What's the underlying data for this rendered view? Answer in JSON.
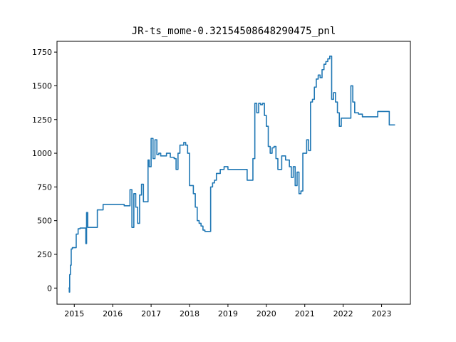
{
  "chart_data": {
    "type": "line",
    "title": "JR-ts_mome-0.32154508648290475_pnl",
    "xlabel": "",
    "ylabel": "",
    "xlim": [
      2014.55,
      2023.75
    ],
    "ylim": [
      -120,
      1830
    ],
    "grid": false,
    "x_ticks": [
      2015,
      2016,
      2017,
      2018,
      2019,
      2020,
      2021,
      2022,
      2023
    ],
    "x_tick_labels": [
      "2015",
      "2016",
      "2017",
      "2018",
      "2019",
      "2020",
      "2021",
      "2022",
      "2023"
    ],
    "y_ticks": [
      0,
      250,
      500,
      750,
      1000,
      1250,
      1500,
      1750
    ],
    "y_tick_labels": [
      "0",
      "250",
      "500",
      "750",
      "1000",
      "1250",
      "1500",
      "1750"
    ],
    "series": [
      {
        "color": "#1f77b4",
        "x": [
          2014.85,
          2014.87,
          2014.88,
          2014.9,
          2014.92,
          2014.95,
          2015.0,
          2015.05,
          2015.1,
          2015.15,
          2015.2,
          2015.25,
          2015.3,
          2015.32,
          2015.35,
          2015.37,
          2015.4,
          2015.42,
          2015.45,
          2015.5,
          2015.6,
          2015.65,
          2015.7,
          2015.75,
          2015.8,
          2016.0,
          2016.3,
          2016.4,
          2016.45,
          2016.5,
          2016.55,
          2016.6,
          2016.65,
          2016.7,
          2016.75,
          2016.8,
          2016.85,
          2016.9,
          2016.92,
          2016.95,
          2017.0,
          2017.05,
          2017.1,
          2017.15,
          2017.2,
          2017.25,
          2017.3,
          2017.4,
          2017.5,
          2017.6,
          2017.65,
          2017.7,
          2017.75,
          2017.8,
          2017.85,
          2017.9,
          2017.95,
          2018.0,
          2018.1,
          2018.15,
          2018.2,
          2018.25,
          2018.3,
          2018.35,
          2018.4,
          2018.45,
          2018.5,
          2018.55,
          2018.6,
          2018.65,
          2018.7,
          2018.8,
          2018.9,
          2019.0,
          2019.2,
          2019.4,
          2019.5,
          2019.6,
          2019.65,
          2019.7,
          2019.75,
          2019.8,
          2019.85,
          2019.9,
          2019.95,
          2020.0,
          2020.05,
          2020.1,
          2020.15,
          2020.2,
          2020.25,
          2020.3,
          2020.4,
          2020.5,
          2020.6,
          2020.65,
          2020.7,
          2020.75,
          2020.8,
          2020.85,
          2020.9,
          2020.95,
          2021.0,
          2021.05,
          2021.1,
          2021.15,
          2021.2,
          2021.25,
          2021.3,
          2021.35,
          2021.4,
          2021.45,
          2021.5,
          2021.55,
          2021.6,
          2021.65,
          2021.7,
          2021.75,
          2021.8,
          2021.85,
          2021.9,
          2021.95,
          2022.0,
          2022.05,
          2022.1,
          2022.15,
          2022.2,
          2022.25,
          2022.3,
          2022.4,
          2022.5,
          2022.6,
          2022.7,
          2022.8,
          2022.9,
          2023.0,
          2023.2,
          2023.35
        ],
        "y": [
          0,
          -30,
          100,
          170,
          290,
          300,
          300,
          400,
          440,
          445,
          445,
          445,
          330,
          560,
          450,
          450,
          450,
          450,
          450,
          450,
          580,
          580,
          580,
          620,
          620,
          620,
          610,
          610,
          730,
          450,
          700,
          600,
          480,
          690,
          770,
          640,
          640,
          640,
          950,
          900,
          1110,
          960,
          1100,
          990,
          1000,
          980,
          980,
          1000,
          970,
          960,
          880,
          1000,
          1060,
          1060,
          1080,
          1060,
          1000,
          760,
          700,
          600,
          500,
          480,
          460,
          430,
          420,
          420,
          420,
          750,
          780,
          800,
          850,
          880,
          900,
          880,
          880,
          880,
          800,
          800,
          960,
          1370,
          1300,
          1370,
          1360,
          1370,
          1280,
          1200,
          1050,
          1000,
          1040,
          1050,
          960,
          880,
          980,
          950,
          900,
          820,
          900,
          760,
          860,
          700,
          720,
          1000,
          1000,
          1100,
          1020,
          1380,
          1400,
          1490,
          1550,
          1580,
          1560,
          1620,
          1660,
          1680,
          1700,
          1720,
          1400,
          1450,
          1380,
          1300,
          1200,
          1260,
          1260,
          1260,
          1260,
          1260,
          1500,
          1380,
          1300,
          1290,
          1270,
          1270,
          1270,
          1270,
          1310,
          1310,
          1210,
          1210
        ]
      }
    ]
  }
}
